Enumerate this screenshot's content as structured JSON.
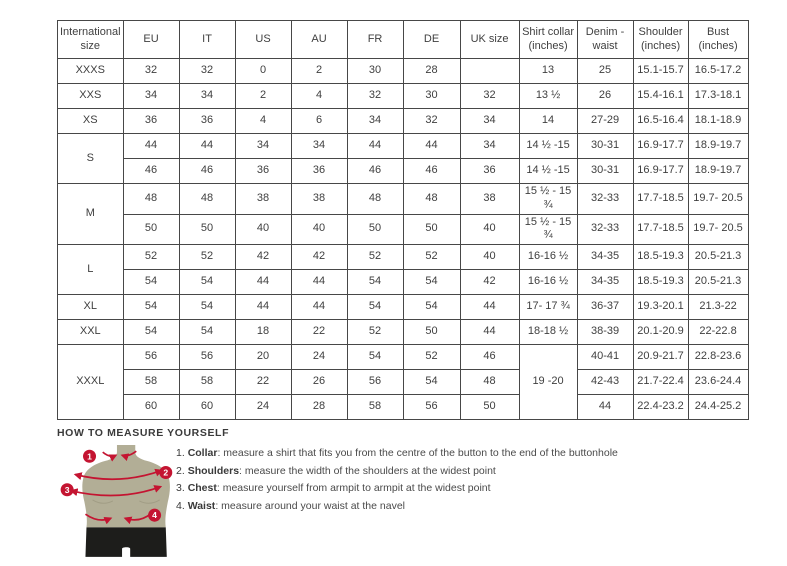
{
  "colors": {
    "accent_red": "#c41431",
    "mannequin_body": "#b2ae96",
    "mannequin_shorts": "#1d1d1b",
    "table_border": "#474747",
    "text": "#3f3f3f"
  },
  "size_table": {
    "headers": [
      "International size",
      "EU",
      "IT",
      "US",
      "AU",
      "FR",
      "DE",
      "UK size",
      "Shirt collar (inches)",
      "Denim - waist",
      "Shoulder (inches)",
      "Bust (inches)"
    ],
    "groups": [
      {
        "size": "XXXS",
        "rows": [
          {
            "cells": [
              "32",
              "32",
              "0",
              "2",
              "30",
              "28",
              "",
              "13",
              "25",
              "15.1-15.7",
              "16.5-17.2"
            ]
          }
        ]
      },
      {
        "size": "XXS",
        "rows": [
          {
            "cells": [
              "34",
              "34",
              "2",
              "4",
              "32",
              "30",
              "32",
              "13 ½",
              "26",
              "15.4-16.1",
              "17.3-18.1"
            ]
          }
        ]
      },
      {
        "size": "XS",
        "rows": [
          {
            "cells": [
              "36",
              "36",
              "4",
              "6",
              "34",
              "32",
              "34",
              "14",
              "27-29",
              "16.5-16.4",
              "18.1-18.9"
            ]
          }
        ]
      },
      {
        "size": "S",
        "rows": [
          {
            "cells": [
              "44",
              "44",
              "34",
              "34",
              "44",
              "44",
              "34",
              "14 ½ -15",
              "30-31",
              "16.9-17.7",
              "18.9-19.7"
            ]
          },
          {
            "cells": [
              "46",
              "46",
              "36",
              "36",
              "46",
              "46",
              "36",
              "14 ½ -15",
              "30-31",
              "16.9-17.7",
              "18.9-19.7"
            ]
          }
        ]
      },
      {
        "size": "M",
        "rows": [
          {
            "cells": [
              "48",
              "48",
              "38",
              "38",
              "48",
              "48",
              "38",
              "15 ½ - 15 ¾",
              "32-33",
              "17.7-18.5",
              "19.7- 20.5"
            ]
          },
          {
            "cells": [
              "50",
              "50",
              "40",
              "40",
              "50",
              "50",
              "40",
              "15 ½ - 15 ¾",
              "32-33",
              "17.7-18.5",
              "19.7- 20.5"
            ]
          }
        ]
      },
      {
        "size": "L",
        "rows": [
          {
            "cells": [
              "52",
              "52",
              "42",
              "42",
              "52",
              "52",
              "40",
              "16-16 ½",
              "34-35",
              "18.5-19.3",
              "20.5-21.3"
            ]
          },
          {
            "cells": [
              "54",
              "54",
              "44",
              "44",
              "54",
              "54",
              "42",
              "16-16 ½",
              "34-35",
              "18.5-19.3",
              "20.5-21.3"
            ]
          }
        ]
      },
      {
        "size": "XL",
        "rows": [
          {
            "cells": [
              "54",
              "54",
              "44",
              "44",
              "54",
              "54",
              "44",
              "17- 17 ¾",
              "36-37",
              "19.3-20.1",
              "21.3-22"
            ]
          }
        ]
      },
      {
        "size": "XXL",
        "rows": [
          {
            "cells": [
              "54",
              "54",
              "18",
              "22",
              "52",
              "50",
              "44",
              "18-18 ½",
              "38-39",
              "20.1-20.9",
              "22-22.8"
            ]
          }
        ]
      },
      {
        "size": "XXXL",
        "merged_collar": "19 -20",
        "rows": [
          {
            "cells": [
              "56",
              "56",
              "20",
              "24",
              "54",
              "52",
              "46",
              "40-41",
              "20.9-21.7",
              "22.8-23.6"
            ]
          },
          {
            "cells": [
              "58",
              "58",
              "22",
              "26",
              "56",
              "54",
              "48",
              "42-43",
              "21.7-22.4",
              "23.6-24.4"
            ]
          },
          {
            "cells": [
              "60",
              "60",
              "24",
              "28",
              "58",
              "56",
              "50",
              "44",
              "22.4-23.2",
              "24.4-25.2"
            ]
          }
        ]
      }
    ]
  },
  "measure": {
    "heading": "HOW TO MEASURE YOURSELF",
    "items": [
      {
        "num": "1.",
        "label": "Collar",
        "text": ": measure a shirt that fits you from the centre of the button to the end of the buttonhole"
      },
      {
        "num": "2.",
        "label": "Shoulders",
        "text": ": measure the width of the shoulders at the widest point"
      },
      {
        "num": "3.",
        "label": "Chest",
        "text": ": measure yourself from armpit to armpit at the widest point"
      },
      {
        "num": "4.",
        "label": "Waist",
        "text": ": measure around your waist at the navel"
      }
    ],
    "figure_markers": [
      "1",
      "2",
      "3",
      "4"
    ]
  }
}
